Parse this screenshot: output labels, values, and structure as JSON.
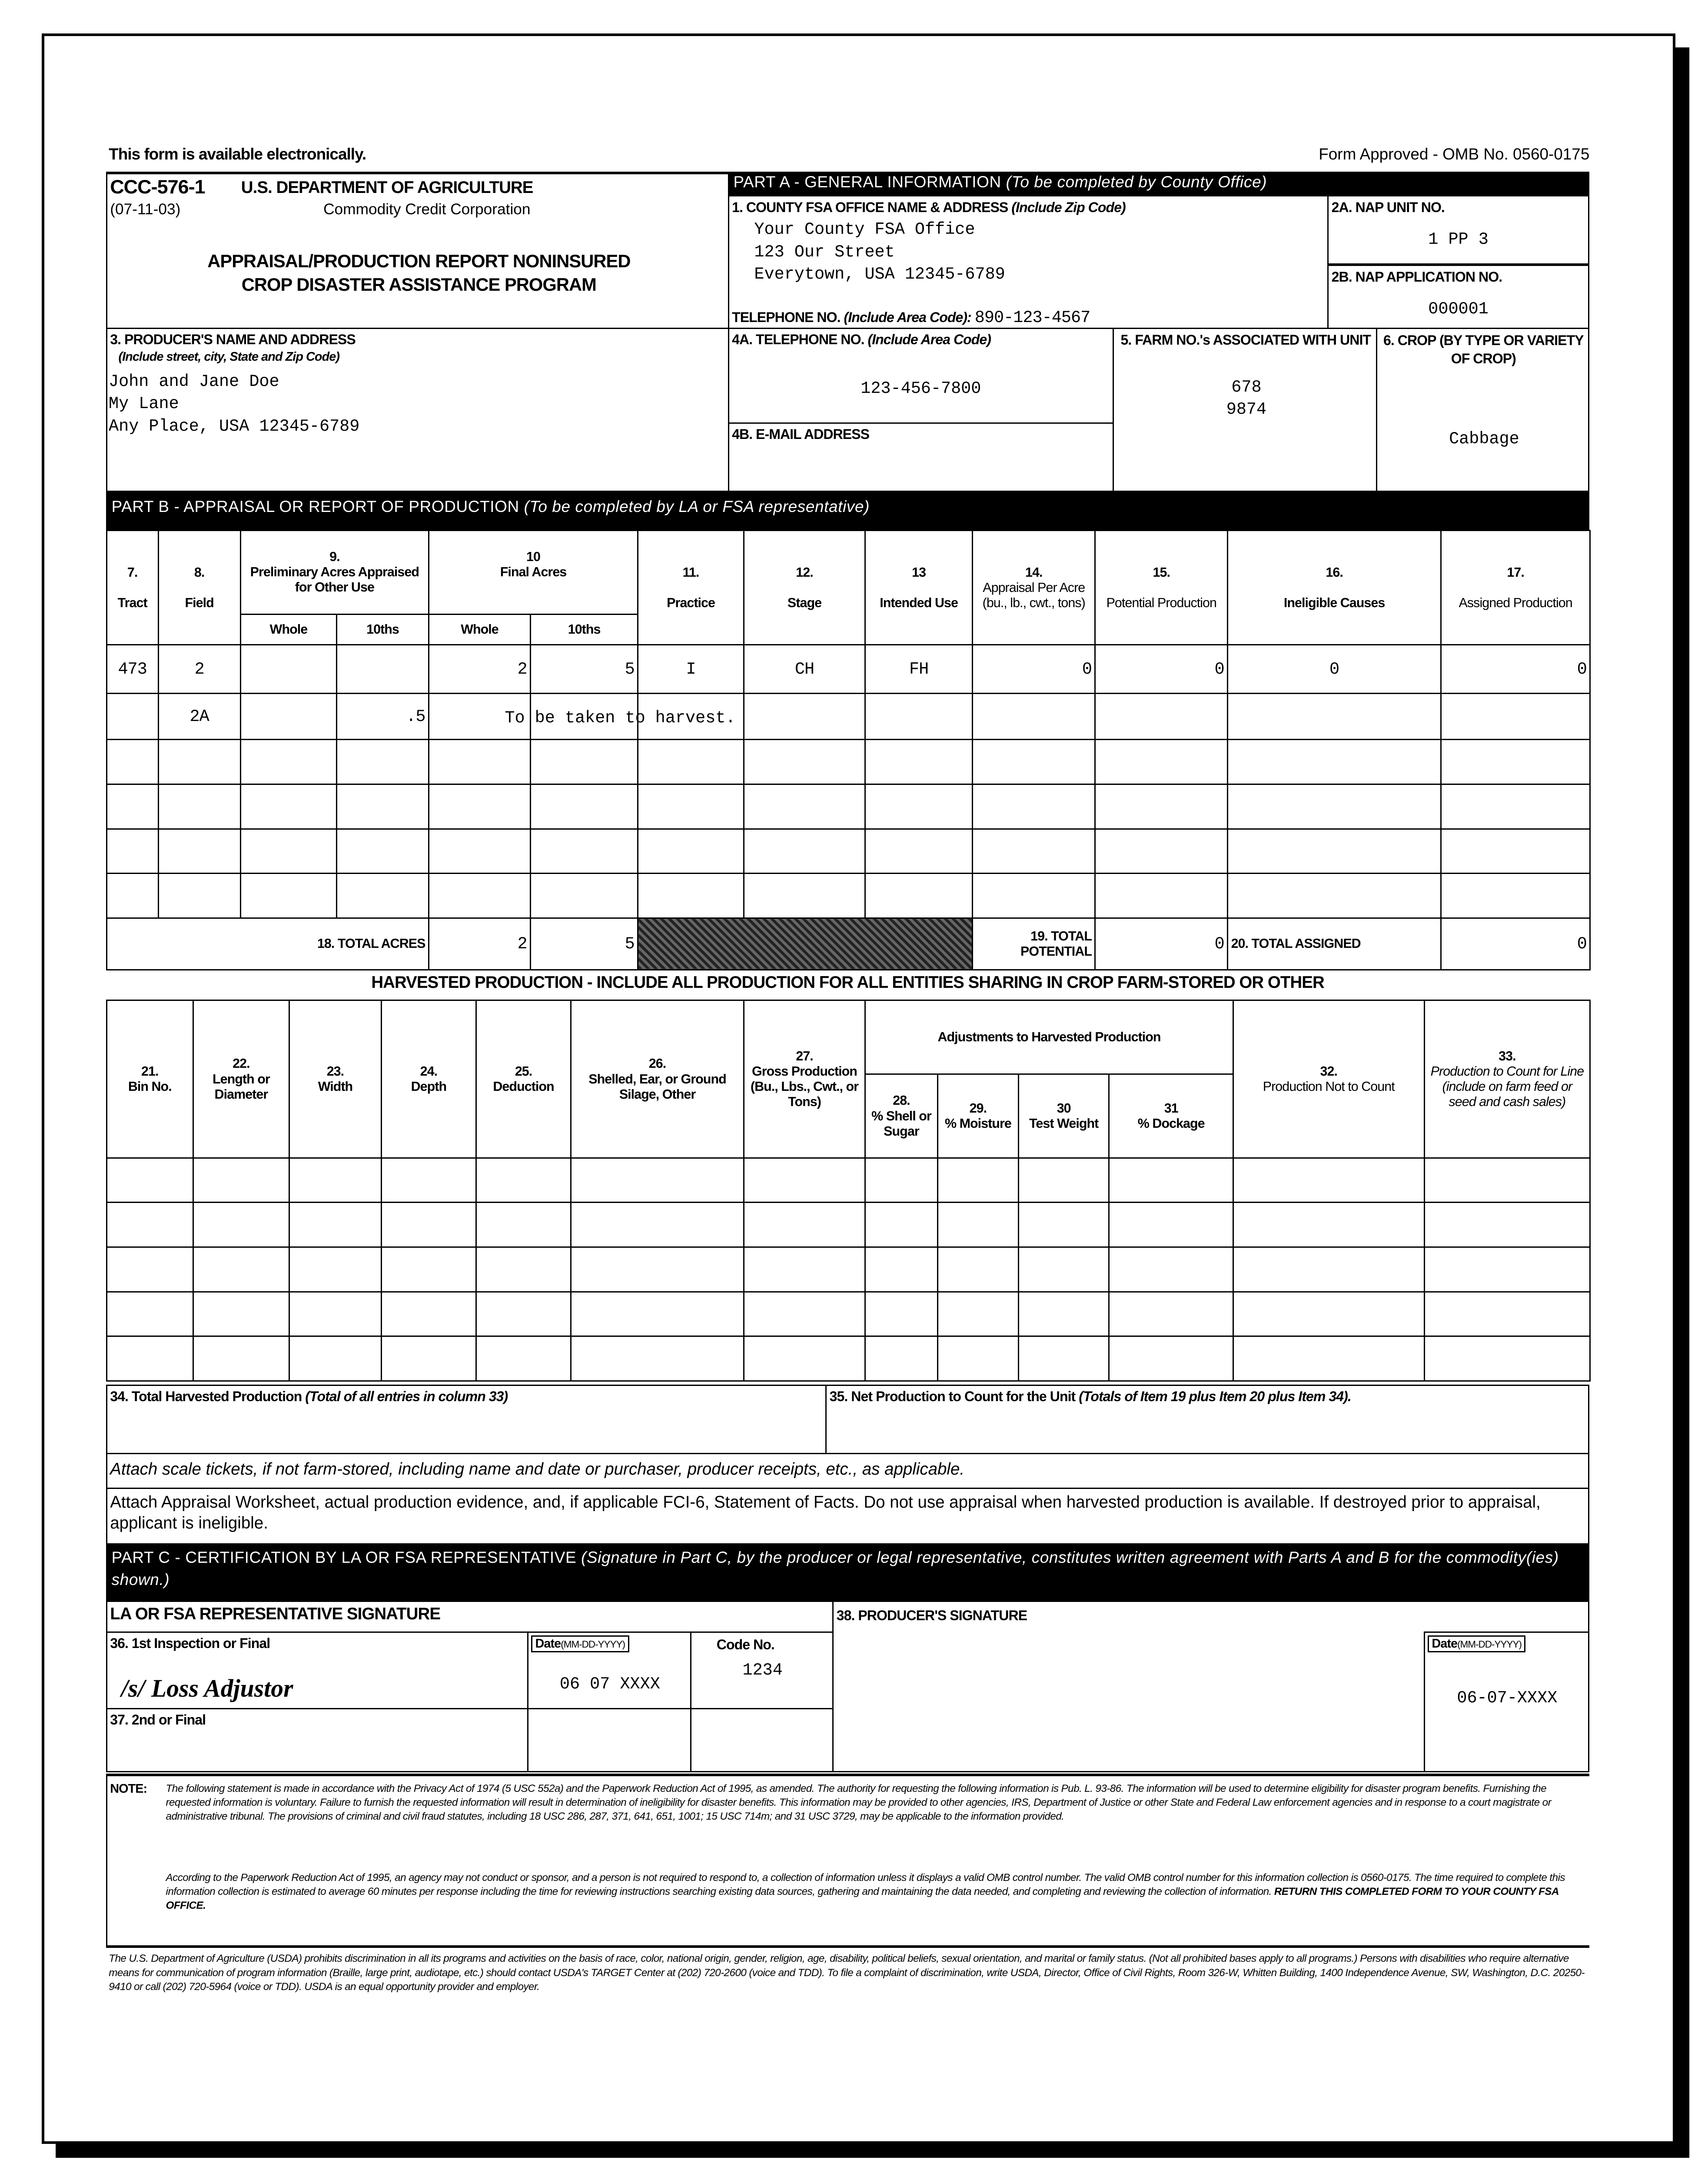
{
  "top": {
    "available": "This form is available electronically.",
    "omb": "Form Approved - OMB No. 0560-0175"
  },
  "header": {
    "form_no": "CCC-576-1",
    "date": "(07-11-03)",
    "dept": "U.S. DEPARTMENT OF AGRICULTURE",
    "corp": "Commodity Credit Corporation",
    "title1": "APPRAISAL/PRODUCTION REPORT NONINSURED",
    "title2": "CROP DISASTER ASSISTANCE PROGRAM"
  },
  "part_a": {
    "bar": "PART A - GENERAL INFORMATION",
    "bar_note": "(To be completed by County Office)",
    "item1_label": "1. COUNTY FSA OFFICE NAME & ADDRESS",
    "item1_note": "(Include Zip Code)",
    "office_lines": [
      "Your County FSA Office",
      "123 Our Street",
      "Everytown, USA 12345-6789"
    ],
    "tel_label": "TELEPHONE NO.",
    "tel_note": "(Include Area Code):",
    "tel_value": "890-123-4567",
    "item2a_label": "2A. NAP UNIT NO.",
    "item2a_value": "1 PP 3",
    "item2b_label": "2B. NAP APPLICATION NO.",
    "item2b_value": "000001",
    "item3_label": "3. PRODUCER'S NAME AND ADDRESS",
    "item3_note": "(Include street, city, State and Zip Code)",
    "producer_lines": [
      "John and Jane Doe",
      "My Lane",
      "Any Place, USA  12345-6789"
    ],
    "item4a_label": "4A. TELEPHONE NO.",
    "item4a_note": "(Include Area Code)",
    "item4a_value": "123-456-7800",
    "item4b_label": "4B. E-MAIL ADDRESS",
    "item5_label": "5. FARM NO.'s ASSOCIATED WITH UNIT",
    "farms": [
      "678",
      "9874"
    ],
    "item6_label": "6. CROP (BY TYPE OR VARIETY OF CROP)",
    "crop": "Cabbage"
  },
  "part_b": {
    "bar": "PART B - APPRAISAL OR REPORT OF PRODUCTION",
    "bar_note": "(To be completed by LA or FSA representative)",
    "headers": {
      "c7": "7.",
      "c7l": "Tract",
      "c8": "8.",
      "c8l": "Field",
      "c9": "9.",
      "c9l": "Preliminary Acres Appraised for Other Use",
      "c10": "10",
      "c10l": "Final Acres",
      "whole": "Whole",
      "tenths": "10ths",
      "c11": "11.",
      "c11l": "Practice",
      "c12": "12.",
      "c12l": "Stage",
      "c13": "13",
      "c13l": "Intended Use",
      "c14": "14.",
      "c14l": "Appraisal Per Acre (bu., lb., cwt., tons)",
      "c15": "15.",
      "c15l": "Potential Production",
      "c16": "16.",
      "c16l": "Ineligible Causes",
      "c17": "17.",
      "c17l": "Assigned Production"
    },
    "rows": [
      {
        "tract": "473",
        "field": "2",
        "pw": "",
        "pt": "",
        "fw": "2",
        "ft": "5",
        "practice": "I",
        "stage": "CH",
        "use": "FH",
        "appraisal": "0",
        "potential": "0",
        "ineligible": "0",
        "assigned": "0"
      },
      {
        "tract": "",
        "field": "2A",
        "pw": "",
        "pt": ".5",
        "remark": "To be taken to harvest."
      }
    ],
    "totals": {
      "acres_label": "18. TOTAL ACRES",
      "acres_whole": "2",
      "acres_tenths": "5",
      "potential_label": "19. TOTAL POTENTIAL",
      "potential": "0",
      "assigned_label": "20. TOTAL ASSIGNED",
      "assigned": "0"
    }
  },
  "harvest": {
    "title": "HARVESTED PRODUCTION - INCLUDE ALL PRODUCTION FOR ALL ENTITIES SHARING IN CROP FARM-STORED OR OTHER",
    "adjustments": "Adjustments to Harvested Production",
    "cols": [
      {
        "n": "21.",
        "l": "Bin No."
      },
      {
        "n": "22.",
        "l": "Length or Diameter"
      },
      {
        "n": "23.",
        "l": "Width"
      },
      {
        "n": "24.",
        "l": "Depth"
      },
      {
        "n": "25.",
        "l": "Deduction"
      },
      {
        "n": "26.",
        "l": "Shelled, Ear, or Ground Silage, Other"
      },
      {
        "n": "27.",
        "l": "Gross Production (Bu., Lbs., Cwt., or Tons)"
      },
      {
        "n": "28.",
        "l": "% Shell or Sugar"
      },
      {
        "n": "29.",
        "l": "% Moisture"
      },
      {
        "n": "30",
        "l": "Test Weight"
      },
      {
        "n": "31",
        "l": "% Dockage"
      },
      {
        "n": "32.",
        "l": "Production Not to Count"
      },
      {
        "n": "33.",
        "l": "Production to Count for Line (include on farm feed or seed and cash sales)"
      }
    ],
    "item34": "34. Total Harvested Production",
    "item34_note": "(Total of all entries in column 33)",
    "item35": "35. Net Production to Count for the Unit",
    "item35_note": "(Totals of Item 19 plus Item 20 plus Item 34)."
  },
  "attach1": "Attach scale tickets, if not farm-stored, including name and date or purchaser, producer receipts, etc., as applicable.",
  "attach2": "Attach Appraisal Worksheet, actual production evidence, and, if applicable FCI-6, Statement of Facts.  Do not use appraisal when harvested production is available.  If destroyed prior to appraisal, applicant is ineligible.",
  "part_c": {
    "bar": "PART C - CERTIFICATION BY LA OR FSA REPRESENTATIVE",
    "bar_note": "(Signature in Part C, by the producer or legal representative, constitutes written agreement with Parts A and B for the commodity(ies) shown.)"
  },
  "signatures": {
    "la_header": "LA OR FSA REPRESENTATIVE SIGNATURE",
    "producer_header": "38. PRODUCER'S SIGNATURE",
    "item36": "36. 1st Inspection or Final",
    "date_label": "Date",
    "date_fmt": "(MM-DD-YYYY)",
    "code_label": "Code No.",
    "la_signature": "/s/ Loss Adjustor",
    "la_date": "06 07 XXXX",
    "code": "1234",
    "producer_date": "06-07-XXXX",
    "item37": "37. 2nd or Final"
  },
  "note": {
    "label": "NOTE:",
    "p1": "The following statement is made in accordance with the Privacy Act of 1974 (5 USC 552a) and the Paperwork Reduction Act of 1995, as amended.  The authority for requesting the following information is Pub. L. 93-86.  The information will be used to determine eligibility for disaster program benefits.  Furnishing the requested information is voluntary.  Failure to furnish the requested information will result in determination of ineligibility for disaster benefits.  This information may be provided to other agencies, IRS, Department of Justice or other State and Federal Law enforcement agencies and in response to a court magistrate or administrative tribunal.  The provisions of criminal and civil fraud statutes, including 18 USC 286, 287, 371, 641, 651, 1001; 15 USC 714m; and 31 USC 3729, may be applicable to the information provided.",
    "p2": "According to the Paperwork Reduction Act of 1995, an agency may not conduct or sponsor, and a person is not required to respond to, a collection of information unless it displays a valid OMB control number.  The valid OMB control number for this information collection is 0560-0175.  The time required to complete this information collection is estimated to average 60 minutes per response including the time for reviewing instructions searching existing data sources, gathering and maintaining the data needed, and completing and reviewing the collection of information.",
    "p2_bold": "RETURN THIS COMPLETED FORM TO YOUR COUNTY FSA OFFICE."
  },
  "nondiscrimination": "The U.S. Department of Agriculture (USDA) prohibits discrimination in all its programs and activities on the basis of race, color, national origin, gender, religion, age, disability, political beliefs, sexual orientation, and marital or family status. (Not all prohibited bases apply to all programs.) Persons with disabilities who require alternative means for communication of program information (Braille, large print, audiotape, etc.) should contact USDA's TARGET Center at (202) 720-2600 (voice and TDD).  To file a complaint of discrimination, write USDA, Director, Office of Civil Rights, Room 326-W, Whitten Building, 1400 Independence Avenue, SW, Washington, D.C. 20250-9410 or call (202) 720-5964 (voice or TDD).  USDA is an equal opportunity provider and employer."
}
